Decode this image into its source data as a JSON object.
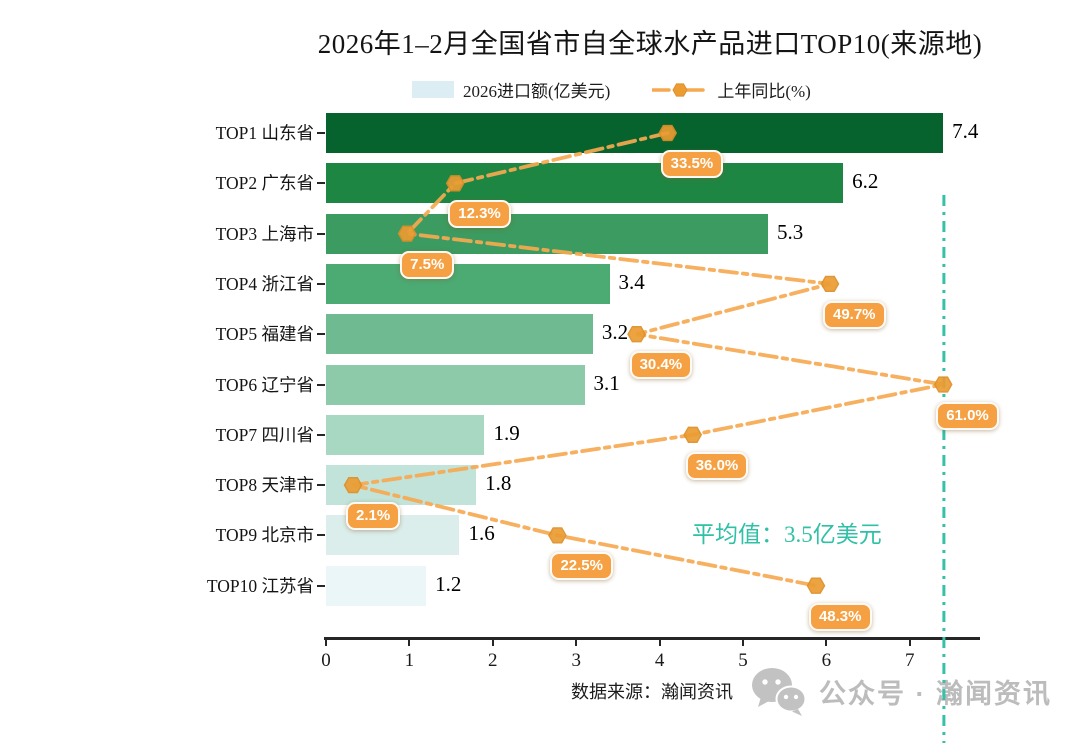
{
  "title": "2026年1–2月全国省市自全球水产品进口TOP10(来源地)",
  "legend": {
    "bar_label": "2026进口额(亿美元)",
    "line_label": "上年同比(%)"
  },
  "chart_data": {
    "type": "bar",
    "orientation": "horizontal",
    "title": "2026年1–2月全国省市自全球水产品进口TOP10(来源地)",
    "categories": [
      "TOP1 山东省",
      "TOP2 广东省",
      "TOP3 上海市",
      "TOP4 浙江省",
      "TOP5 福建省",
      "TOP6 辽宁省",
      "TOP7 四川省",
      "TOP8 天津市",
      "TOP9 北京市",
      "TOP10 江苏省"
    ],
    "series": [
      {
        "name": "2026进口额(亿美元)",
        "type": "bar",
        "values": [
          7.4,
          6.2,
          5.3,
          3.4,
          3.2,
          3.1,
          1.9,
          1.8,
          1.6,
          1.2
        ]
      },
      {
        "name": "上年同比(%)",
        "type": "line",
        "values": [
          33.5,
          12.3,
          7.5,
          49.7,
          30.4,
          61.0,
          36.0,
          2.1,
          22.5,
          48.3
        ]
      }
    ],
    "value_labels": [
      "7.4",
      "6.2",
      "5.3",
      "3.4",
      "3.2",
      "3.1",
      "1.9",
      "1.8",
      "1.6",
      "1.2"
    ],
    "pct_labels": [
      "33.5%",
      "12.3%",
      "7.5%",
      "49.7%",
      "30.4%",
      "61.0%",
      "36.0%",
      "2.1%",
      "22.5%",
      "48.3%"
    ],
    "x_ticks": [
      "0",
      "1",
      "2",
      "3",
      "4",
      "5",
      "6",
      "7"
    ],
    "xlim": [
      0,
      7.82
    ],
    "grid": false,
    "legend_position": "top",
    "average": {
      "value": 3.5,
      "label": "平均值：3.5亿美元"
    },
    "bar_colors": [
      "#07632e",
      "#1e8643",
      "#3c9b60",
      "#4caa73",
      "#6fba90",
      "#8ccaaa",
      "#a9d8c2",
      "#c2e3d9",
      "#dbeeec",
      "#eaf6f7"
    ],
    "line_color": "#f6a951",
    "marker_color": "#eb9c33",
    "badge_color": "#f5a143",
    "average_line_color": "#35c1a7",
    "axis_color": "#262626",
    "legend_swatch_color": "#dcedf3"
  },
  "footer": {
    "source": "数据来源：瀚闻资讯",
    "watermark": "公众号 · 瀚闻资讯"
  }
}
